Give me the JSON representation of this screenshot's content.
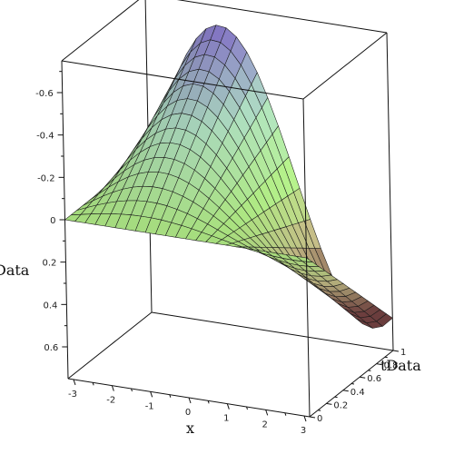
{
  "chart_data": {
    "type": "surface3d",
    "title": "",
    "xlabel": "x",
    "ylabel": "tData",
    "zlabel": "Data",
    "x_range": [
      -3.1416,
      3.1416
    ],
    "t_range": [
      0,
      1
    ],
    "z_range": [
      -0.75,
      0.75
    ],
    "z_axis_reversed": true,
    "grid": {
      "x_lines": 24,
      "t_lines": 14
    },
    "surface_samples": {
      "note_x": "rows sampled at x = -pi, -pi/2, 0, pi/2, pi",
      "t_values": [
        0,
        0.25,
        0.5,
        0.75,
        1
      ],
      "values": [
        [
          0,
          0,
          0,
          0,
          0
        ],
        [
          0,
          -0.12,
          -0.28,
          -0.44,
          -0.58
        ],
        [
          0,
          -0.16,
          -0.32,
          -0.49,
          -0.66
        ],
        [
          0,
          -0.09,
          -0.14,
          -0.05,
          0.2
        ],
        [
          0,
          0.03,
          0.15,
          0.35,
          0.52
        ]
      ]
    },
    "x_ticks": [
      "-3",
      "-2",
      "-1",
      "0",
      "1",
      "2",
      "3"
    ],
    "t_ticks": [
      "0",
      "0.2",
      "0.4",
      "0.6",
      "0.8",
      "1"
    ],
    "z_ticks": [
      "-0.6",
      "-0.4",
      "-0.2",
      "0",
      "0.2",
      "0.4",
      "0.6"
    ],
    "colormap": [
      "#8e7ad8",
      "#b6e8c9",
      "#b8f58a",
      "#c9c08a",
      "#7a4646"
    ]
  }
}
